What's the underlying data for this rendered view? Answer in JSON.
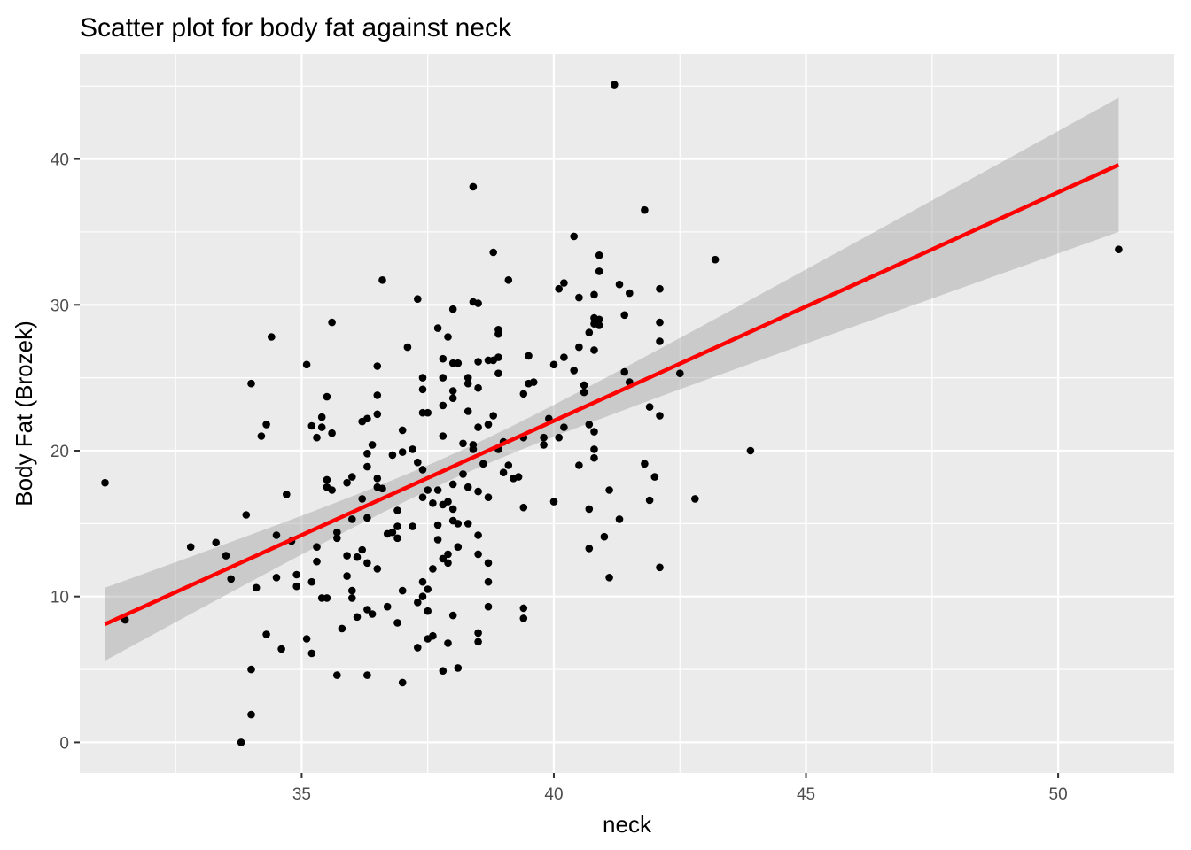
{
  "chart_data": {
    "type": "scatter",
    "title": "Scatter plot for body fat against neck",
    "xlabel": "neck",
    "ylabel": "Body Fat (Brozek)",
    "xlim": [
      30.6,
      52.3
    ],
    "ylim": [
      -2.1,
      47.2
    ],
    "xticks": [
      35,
      40,
      45,
      50
    ],
    "yticks": [
      0,
      10,
      20,
      30,
      40
    ],
    "grid": true,
    "colors": {
      "panel": "#ebebeb",
      "grid": "#ffffff",
      "points": "#000000",
      "fit_line": "#ff0000",
      "ribbon": "#999999"
    },
    "fit": {
      "x": [
        31.1,
        51.2
      ],
      "y": [
        8.1,
        39.6
      ],
      "ci_low": [
        5.6,
        35.0
      ],
      "ci_high": [
        10.6,
        44.2
      ]
    },
    "points": [
      [
        31.1,
        17.8
      ],
      [
        31.5,
        8.4
      ],
      [
        32.8,
        13.4
      ],
      [
        33.3,
        13.7
      ],
      [
        33.5,
        12.8
      ],
      [
        33.6,
        11.2
      ],
      [
        33.8,
        0
      ],
      [
        33.9,
        15.6
      ],
      [
        34.0,
        24.6
      ],
      [
        34.0,
        5.0
      ],
      [
        34.0,
        1.9
      ],
      [
        34.1,
        10.6
      ],
      [
        34.2,
        21.0
      ],
      [
        34.3,
        21.8
      ],
      [
        34.3,
        7.4
      ],
      [
        34.4,
        27.8
      ],
      [
        34.5,
        14.2
      ],
      [
        34.5,
        11.3
      ],
      [
        34.6,
        6.4
      ],
      [
        34.7,
        17.0
      ],
      [
        34.8,
        13.8
      ],
      [
        34.9,
        11.5
      ],
      [
        34.9,
        10.7
      ],
      [
        35.1,
        25.9
      ],
      [
        35.1,
        7.1
      ],
      [
        35.2,
        21.7
      ],
      [
        35.2,
        11.0
      ],
      [
        35.2,
        6.1
      ],
      [
        35.3,
        20.9
      ],
      [
        35.3,
        13.4
      ],
      [
        35.3,
        12.4
      ],
      [
        35.4,
        22.3
      ],
      [
        35.4,
        21.6
      ],
      [
        35.4,
        9.9
      ],
      [
        35.5,
        23.7
      ],
      [
        35.5,
        18.0
      ],
      [
        35.5,
        17.5
      ],
      [
        35.5,
        9.9
      ],
      [
        35.6,
        28.8
      ],
      [
        35.6,
        21.2
      ],
      [
        35.6,
        17.3
      ],
      [
        35.7,
        14.4
      ],
      [
        35.7,
        14.0
      ],
      [
        35.7,
        4.6
      ],
      [
        35.8,
        7.8
      ],
      [
        35.9,
        17.8
      ],
      [
        35.9,
        12.8
      ],
      [
        35.9,
        11.4
      ],
      [
        36.0,
        18.2
      ],
      [
        36.0,
        15.3
      ],
      [
        36.0,
        10.4
      ],
      [
        36.0,
        9.9
      ],
      [
        36.1,
        12.7
      ],
      [
        36.1,
        8.6
      ],
      [
        36.2,
        22.0
      ],
      [
        36.2,
        16.7
      ],
      [
        36.2,
        13.2
      ],
      [
        36.3,
        22.2
      ],
      [
        36.3,
        19.8
      ],
      [
        36.3,
        18.9
      ],
      [
        36.3,
        15.4
      ],
      [
        36.3,
        12.3
      ],
      [
        36.3,
        9.1
      ],
      [
        36.3,
        4.6
      ],
      [
        36.4,
        20.4
      ],
      [
        36.4,
        8.8
      ],
      [
        36.5,
        25.8
      ],
      [
        36.5,
        23.8
      ],
      [
        36.5,
        22.5
      ],
      [
        36.5,
        18.1
      ],
      [
        36.5,
        17.5
      ],
      [
        36.5,
        11.9
      ],
      [
        36.6,
        31.7
      ],
      [
        36.6,
        17.4
      ],
      [
        36.7,
        14.3
      ],
      [
        36.7,
        9.3
      ],
      [
        36.8,
        19.7
      ],
      [
        36.8,
        14.4
      ],
      [
        36.9,
        15.9
      ],
      [
        36.9,
        14.8
      ],
      [
        36.9,
        14.0
      ],
      [
        36.9,
        8.2
      ],
      [
        37.0,
        21.4
      ],
      [
        37.0,
        19.9
      ],
      [
        37.0,
        10.4
      ],
      [
        37.0,
        4.1
      ],
      [
        37.1,
        27.1
      ],
      [
        37.2,
        20.1
      ],
      [
        37.2,
        14.8
      ],
      [
        37.3,
        30.4
      ],
      [
        37.3,
        19.2
      ],
      [
        37.3,
        9.6
      ],
      [
        37.3,
        6.5
      ],
      [
        37.4,
        25.0
      ],
      [
        37.4,
        24.2
      ],
      [
        37.4,
        22.6
      ],
      [
        37.4,
        18.7
      ],
      [
        37.4,
        16.8
      ],
      [
        37.4,
        11.0
      ],
      [
        37.4,
        10.0
      ],
      [
        37.5,
        22.6
      ],
      [
        37.5,
        17.3
      ],
      [
        37.5,
        10.5
      ],
      [
        37.5,
        9.0
      ],
      [
        37.5,
        7.1
      ],
      [
        37.6,
        16.4
      ],
      [
        37.6,
        11.9
      ],
      [
        37.6,
        7.3
      ],
      [
        37.7,
        28.4
      ],
      [
        37.7,
        17.3
      ],
      [
        37.7,
        14.9
      ],
      [
        37.7,
        13.9
      ],
      [
        37.8,
        26.3
      ],
      [
        37.8,
        25.0
      ],
      [
        37.8,
        23.1
      ],
      [
        37.8,
        21.0
      ],
      [
        37.8,
        16.3
      ],
      [
        37.8,
        12.6
      ],
      [
        37.8,
        4.9
      ],
      [
        37.9,
        27.8
      ],
      [
        37.9,
        16.5
      ],
      [
        37.9,
        12.9
      ],
      [
        37.9,
        12.3
      ],
      [
        37.9,
        6.8
      ],
      [
        38.0,
        29.7
      ],
      [
        38.0,
        26.0
      ],
      [
        38.0,
        24.1
      ],
      [
        38.0,
        23.6
      ],
      [
        38.0,
        17.7
      ],
      [
        38.0,
        16.0
      ],
      [
        38.0,
        15.2
      ],
      [
        38.0,
        8.7
      ],
      [
        38.1,
        26.0
      ],
      [
        38.1,
        15.0
      ],
      [
        38.1,
        13.4
      ],
      [
        38.1,
        5.1
      ],
      [
        38.2,
        20.5
      ],
      [
        38.2,
        18.4
      ],
      [
        38.3,
        25.0
      ],
      [
        38.3,
        24.6
      ],
      [
        38.3,
        22.7
      ],
      [
        38.3,
        17.5
      ],
      [
        38.3,
        15.0
      ],
      [
        38.4,
        38.1
      ],
      [
        38.4,
        30.2
      ],
      [
        38.4,
        20.4
      ],
      [
        38.4,
        20.1
      ],
      [
        38.5,
        30.1
      ],
      [
        38.5,
        26.1
      ],
      [
        38.5,
        24.3
      ],
      [
        38.5,
        21.6
      ],
      [
        38.5,
        17.2
      ],
      [
        38.5,
        14.2
      ],
      [
        38.5,
        12.9
      ],
      [
        38.5,
        7.5
      ],
      [
        38.5,
        6.9
      ],
      [
        38.6,
        19.1
      ],
      [
        38.7,
        26.2
      ],
      [
        38.7,
        21.8
      ],
      [
        38.7,
        16.8
      ],
      [
        38.7,
        12.3
      ],
      [
        38.7,
        11.0
      ],
      [
        38.7,
        9.3
      ],
      [
        38.8,
        33.6
      ],
      [
        38.8,
        26.2
      ],
      [
        38.8,
        22.4
      ],
      [
        38.9,
        28.3
      ],
      [
        38.9,
        28.0
      ],
      [
        38.9,
        26.4
      ],
      [
        38.9,
        25.3
      ],
      [
        38.9,
        20.1
      ],
      [
        39.0,
        20.6
      ],
      [
        39.0,
        18.5
      ],
      [
        39.1,
        31.7
      ],
      [
        39.1,
        19.0
      ],
      [
        39.2,
        18.1
      ],
      [
        39.3,
        18.2
      ],
      [
        39.4,
        23.9
      ],
      [
        39.4,
        20.9
      ],
      [
        39.4,
        16.1
      ],
      [
        39.4,
        9.2
      ],
      [
        39.4,
        8.5
      ],
      [
        39.5,
        26.5
      ],
      [
        39.5,
        24.6
      ],
      [
        39.6,
        24.7
      ],
      [
        39.8,
        20.9
      ],
      [
        39.8,
        20.4
      ],
      [
        39.9,
        22.2
      ],
      [
        40.0,
        25.9
      ],
      [
        40.0,
        16.5
      ],
      [
        40.1,
        31.1
      ],
      [
        40.1,
        20.9
      ],
      [
        40.2,
        31.5
      ],
      [
        40.2,
        26.4
      ],
      [
        40.2,
        21.6
      ],
      [
        40.4,
        34.7
      ],
      [
        40.4,
        25.5
      ],
      [
        40.5,
        30.5
      ],
      [
        40.5,
        27.1
      ],
      [
        40.5,
        19.0
      ],
      [
        40.6,
        24.5
      ],
      [
        40.6,
        24.0
      ],
      [
        40.7,
        28.1
      ],
      [
        40.7,
        21.8
      ],
      [
        40.7,
        16.0
      ],
      [
        40.7,
        13.3
      ],
      [
        40.8,
        30.7
      ],
      [
        40.8,
        29.1
      ],
      [
        40.8,
        28.7
      ],
      [
        40.8,
        26.9
      ],
      [
        40.8,
        21.3
      ],
      [
        40.8,
        20.1
      ],
      [
        40.8,
        19.5
      ],
      [
        40.9,
        33.4
      ],
      [
        40.9,
        32.3
      ],
      [
        40.9,
        29.0
      ],
      [
        40.9,
        28.6
      ],
      [
        41.0,
        14.1
      ],
      [
        41.1,
        17.3
      ],
      [
        41.1,
        11.3
      ],
      [
        41.2,
        45.1
      ],
      [
        41.3,
        31.4
      ],
      [
        41.3,
        15.3
      ],
      [
        41.4,
        29.3
      ],
      [
        41.4,
        25.4
      ],
      [
        41.5,
        30.8
      ],
      [
        41.5,
        24.7
      ],
      [
        41.8,
        36.5
      ],
      [
        41.8,
        19.1
      ],
      [
        41.9,
        23.0
      ],
      [
        41.9,
        16.6
      ],
      [
        42.0,
        18.2
      ],
      [
        42.1,
        31.1
      ],
      [
        42.1,
        28.8
      ],
      [
        42.1,
        27.5
      ],
      [
        42.1,
        22.4
      ],
      [
        42.1,
        12.0
      ],
      [
        42.5,
        25.3
      ],
      [
        42.8,
        16.7
      ],
      [
        43.2,
        33.1
      ],
      [
        43.9,
        20.0
      ],
      [
        51.2,
        33.8
      ]
    ]
  }
}
